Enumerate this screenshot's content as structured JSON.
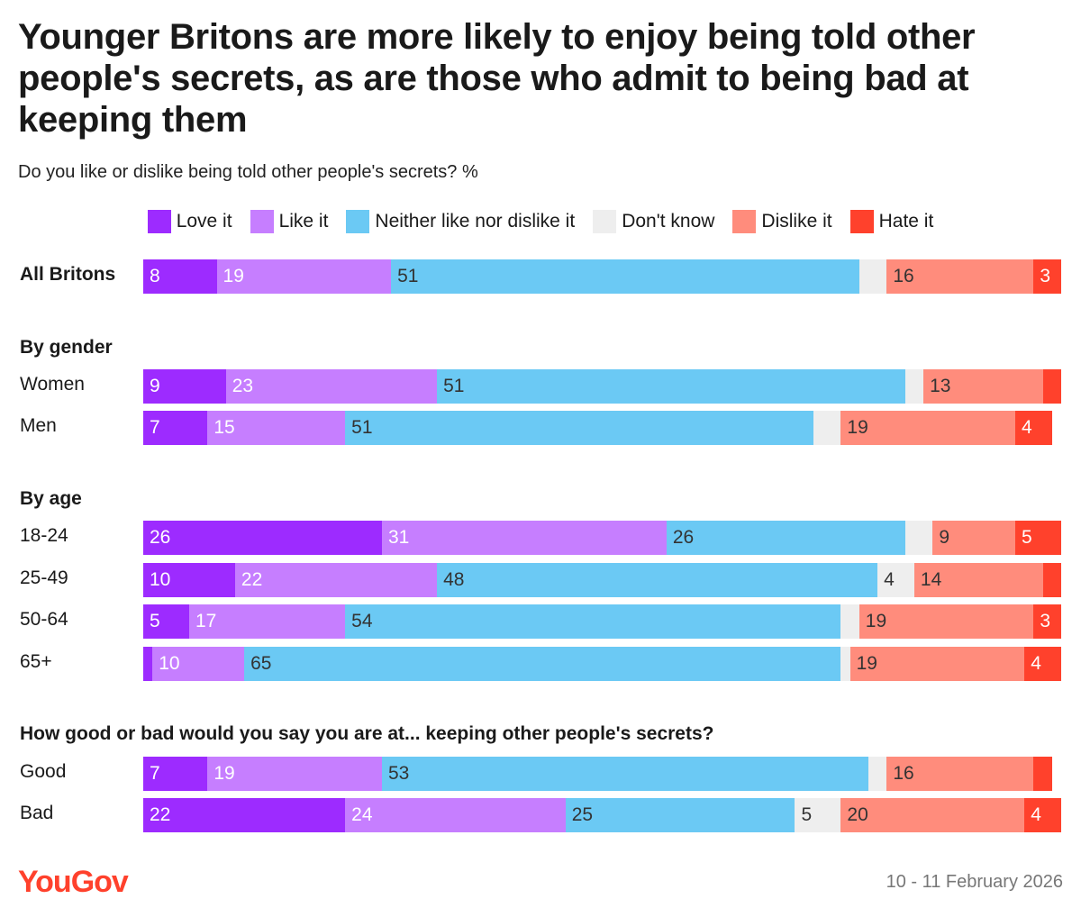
{
  "title": "Younger Britons are more likely to enjoy being told other people's secrets, as are those who admit to being bad at keeping them",
  "subtitle": "Do you like or dislike being told other people's secrets? %",
  "footer": {
    "logo": "YouGov",
    "date": "10 - 11 February 2026"
  },
  "chart_data": {
    "type": "bar",
    "orientation": "horizontal",
    "stacked": true,
    "legend_position": "top",
    "series": [
      {
        "name": "Love it",
        "color": "#9d2bff"
      },
      {
        "name": "Like it",
        "color": "#c67eff"
      },
      {
        "name": "Neither like nor dislike it",
        "color": "#6bc9f4"
      },
      {
        "name": "Don't know",
        "color": "#eeeeee"
      },
      {
        "name": "Dislike it",
        "color": "#ff8c7c"
      },
      {
        "name": "Hate it",
        "color": "#ff412c"
      }
    ],
    "groups": [
      {
        "heading": "",
        "rows": [
          {
            "label": "All Britons",
            "bold": true,
            "values": [
              8,
              19,
              51,
              3,
              16,
              3
            ]
          }
        ]
      },
      {
        "heading": "By gender",
        "rows": [
          {
            "label": "Women",
            "values": [
              9,
              23,
              51,
              2,
              13,
              2
            ]
          },
          {
            "label": "Men",
            "values": [
              7,
              15,
              51,
              3,
              19,
              4
            ]
          }
        ]
      },
      {
        "heading": "By age",
        "rows": [
          {
            "label": "18-24",
            "values": [
              26,
              31,
              26,
              3,
              9,
              5
            ]
          },
          {
            "label": "25-49",
            "values": [
              10,
              22,
              48,
              4,
              14,
              2
            ]
          },
          {
            "label": "50-64",
            "values": [
              5,
              17,
              54,
              2,
              19,
              3
            ]
          },
          {
            "label": "65+",
            "values": [
              1,
              10,
              65,
              1,
              19,
              4
            ]
          }
        ]
      },
      {
        "heading": "How good or bad would you say you are at... keeping other people's secrets?",
        "rows": [
          {
            "label": "Good",
            "values": [
              7,
              19,
              53,
              2,
              16,
              2
            ]
          },
          {
            "label": "Bad",
            "values": [
              22,
              24,
              25,
              5,
              20,
              4
            ]
          }
        ]
      }
    ]
  }
}
